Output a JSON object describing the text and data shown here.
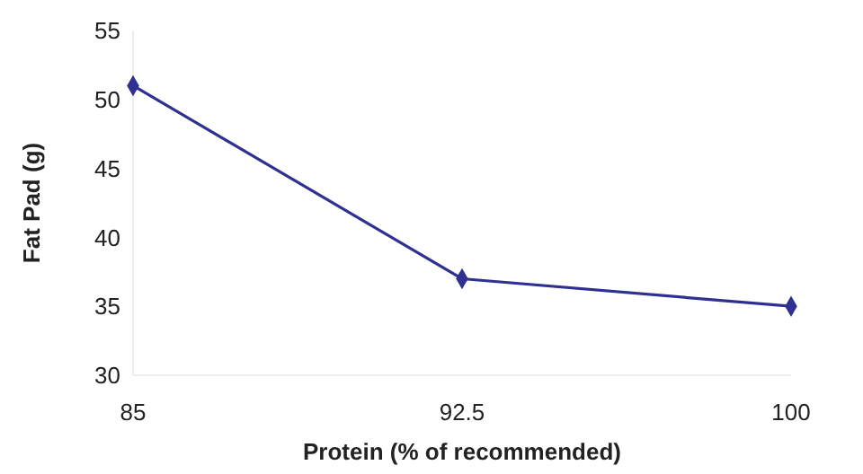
{
  "chart_data": {
    "type": "line",
    "xlabel": "Protein (% of recommended)",
    "ylabel": "Fat Pad (g)",
    "x": [
      85,
      92.5,
      100
    ],
    "series": [
      {
        "color": "#2e3192",
        "values": [
          51,
          37,
          35
        ]
      }
    ],
    "xlim": [
      85,
      100
    ],
    "xticks": [
      85,
      92.5,
      100
    ],
    "ylim": [
      30,
      55
    ],
    "yticks": [
      30,
      35,
      40,
      45,
      50,
      55
    ],
    "marker": "diamond",
    "line_style": "solid",
    "grid": false
  }
}
